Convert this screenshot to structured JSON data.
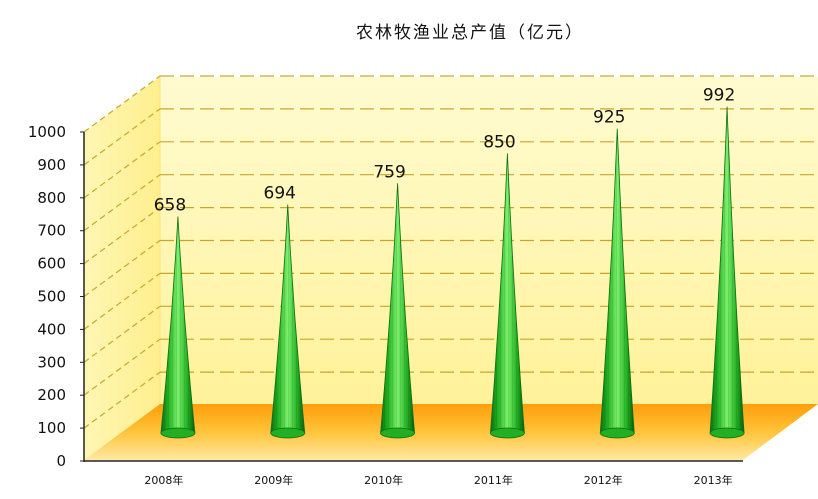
{
  "chart_data": {
    "type": "bar",
    "title": "农林牧渔业总产值（亿元）",
    "xlabel": "",
    "ylabel": "",
    "categories": [
      "2008年",
      "2009年",
      "2010年",
      "2011年",
      "2012年",
      "2013年"
    ],
    "values": [
      658,
      694,
      759,
      850,
      925,
      992
    ],
    "data_labels": [
      "658",
      "694",
      "759",
      "850",
      "925",
      "992"
    ],
    "ylim": [
      0,
      1000
    ],
    "yticks": [
      "0",
      "100",
      "200",
      "300",
      "400",
      "500",
      "600",
      "700",
      "800",
      "900",
      "1000"
    ],
    "grid": true,
    "legend": "none",
    "mark_shape": "cone",
    "colors": {
      "mark": "#22b022",
      "mark_dark": "#0d6e12",
      "mark_light": "#7cf06c",
      "wall": "#fff6a8",
      "floor": "#ffc328",
      "gridline": "#c9a62a"
    }
  }
}
